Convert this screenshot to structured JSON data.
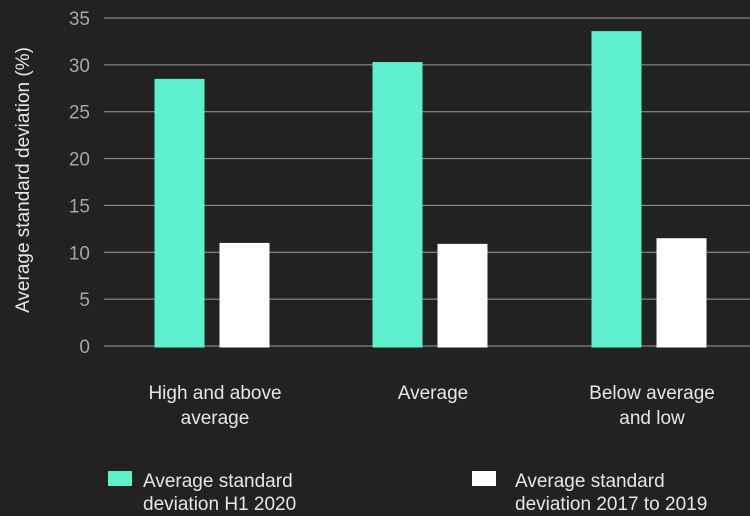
{
  "chart_data": {
    "type": "bar",
    "categories": [
      [
        "High and above",
        "average"
      ],
      [
        "Average"
      ],
      [
        "Below average",
        "and low"
      ]
    ],
    "series": [
      {
        "name": [
          "Average standard",
          "deviation H1 2020"
        ],
        "color": "#5ef0cc",
        "values": [
          28.5,
          30.3,
          33.6
        ]
      },
      {
        "name": [
          "Average standard",
          "deviation 2017 to 2019"
        ],
        "color": "#ffffff",
        "values": [
          11.0,
          10.9,
          11.5
        ]
      }
    ],
    "ylabel": "Average standard deviation (%)",
    "ylim": [
      0,
      35
    ],
    "yticks": [
      0,
      5,
      10,
      15,
      20,
      25,
      30,
      35
    ],
    "grid": true,
    "legend_position": "bottom"
  }
}
